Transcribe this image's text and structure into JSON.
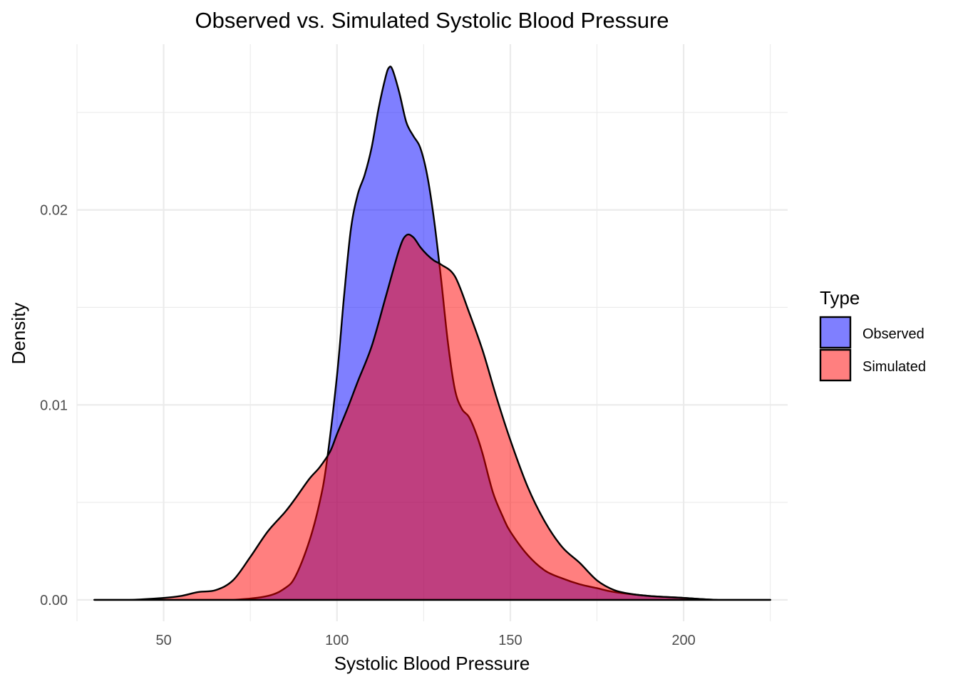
{
  "chart_data": {
    "type": "area",
    "title": "Observed vs. Simulated Systolic Blood Pressure",
    "xlabel": "Systolic Blood Pressure",
    "ylabel": "Density",
    "xlim": [
      25,
      230
    ],
    "ylim": [
      -0.0011,
      0.0285
    ],
    "x_ticks": [
      50,
      100,
      150,
      200
    ],
    "x_tick_labels": [
      "50",
      "100",
      "150",
      "200"
    ],
    "y_ticks": [
      0.0,
      0.01,
      0.02
    ],
    "y_tick_labels": [
      "0.00",
      "0.01",
      "0.02"
    ],
    "grid": true,
    "legend": {
      "title": "Type",
      "position": "right"
    },
    "series": [
      {
        "name": "Observed",
        "color": "#0000FF",
        "alpha": 0.5,
        "x": [
          30,
          45,
          50,
          60,
          70,
          80,
          85,
          88,
          92,
          95,
          97,
          100,
          102,
          104,
          106,
          108,
          110,
          112,
          114,
          115,
          116,
          118,
          120,
          122,
          124,
          126,
          128,
          130,
          132,
          134,
          136,
          138,
          140,
          142,
          145,
          148,
          150,
          155,
          160,
          165,
          170,
          175,
          180,
          190,
          200,
          210,
          225
        ],
        "y": [
          0.0,
          0.0,
          0.0,
          0.0,
          0.0,
          0.0002,
          0.0006,
          0.0012,
          0.003,
          0.005,
          0.007,
          0.0115,
          0.0155,
          0.019,
          0.0208,
          0.0218,
          0.0232,
          0.0252,
          0.0268,
          0.0273,
          0.0272,
          0.026,
          0.0245,
          0.0238,
          0.0232,
          0.0218,
          0.0195,
          0.0165,
          0.0132,
          0.0108,
          0.0098,
          0.0094,
          0.0086,
          0.0075,
          0.0055,
          0.0042,
          0.0035,
          0.0023,
          0.0015,
          0.0011,
          0.0008,
          0.0006,
          0.0004,
          0.0002,
          0.0001,
          0.0,
          0.0
        ]
      },
      {
        "name": "Simulated",
        "color": "#FF0000",
        "alpha": 0.5,
        "x": [
          30,
          40,
          50,
          55,
          60,
          65,
          70,
          75,
          80,
          85,
          88,
          92,
          95,
          98,
          100,
          103,
          106,
          110,
          114,
          118,
          120,
          122,
          124,
          126,
          128,
          130,
          134,
          138,
          142,
          146,
          150,
          155,
          160,
          165,
          170,
          175,
          180,
          185,
          190,
          200,
          210,
          225
        ],
        "y": [
          0.0,
          0.0,
          0.0001,
          0.0002,
          0.0004,
          0.0005,
          0.001,
          0.0022,
          0.0035,
          0.0045,
          0.0052,
          0.0062,
          0.0068,
          0.0076,
          0.0085,
          0.0098,
          0.0112,
          0.013,
          0.0155,
          0.018,
          0.0187,
          0.0186,
          0.0181,
          0.0177,
          0.0174,
          0.0172,
          0.0166,
          0.0148,
          0.0128,
          0.0104,
          0.0082,
          0.0058,
          0.004,
          0.0027,
          0.0019,
          0.001,
          0.0005,
          0.0003,
          0.0002,
          0.0001,
          0.0,
          0.0
        ]
      }
    ]
  }
}
